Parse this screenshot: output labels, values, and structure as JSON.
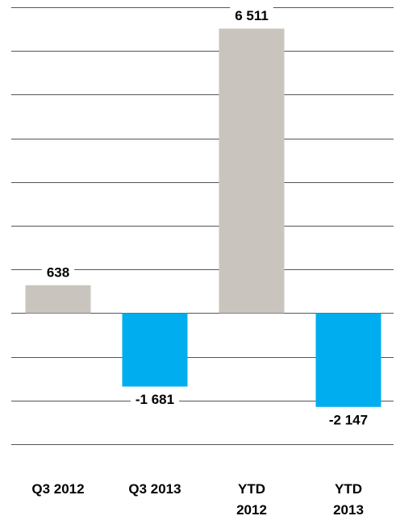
{
  "chart_data": {
    "type": "bar",
    "categories": [
      [
        "Q3 2012"
      ],
      [
        "Q3 2013"
      ],
      [
        "YTD",
        "2012"
      ],
      [
        "YTD",
        "2013"
      ]
    ],
    "values": [
      638,
      -1681,
      6511,
      -2147
    ],
    "value_labels": [
      "638",
      "-1 681",
      "6 511",
      "-2 147"
    ],
    "ylim": [
      -3000,
      7000
    ],
    "grid_step": 1000,
    "grid": true,
    "colors": {
      "positive": "#C9C5BE",
      "negative": "#00AEEF",
      "grid": "#555555",
      "text": "#000000"
    }
  }
}
